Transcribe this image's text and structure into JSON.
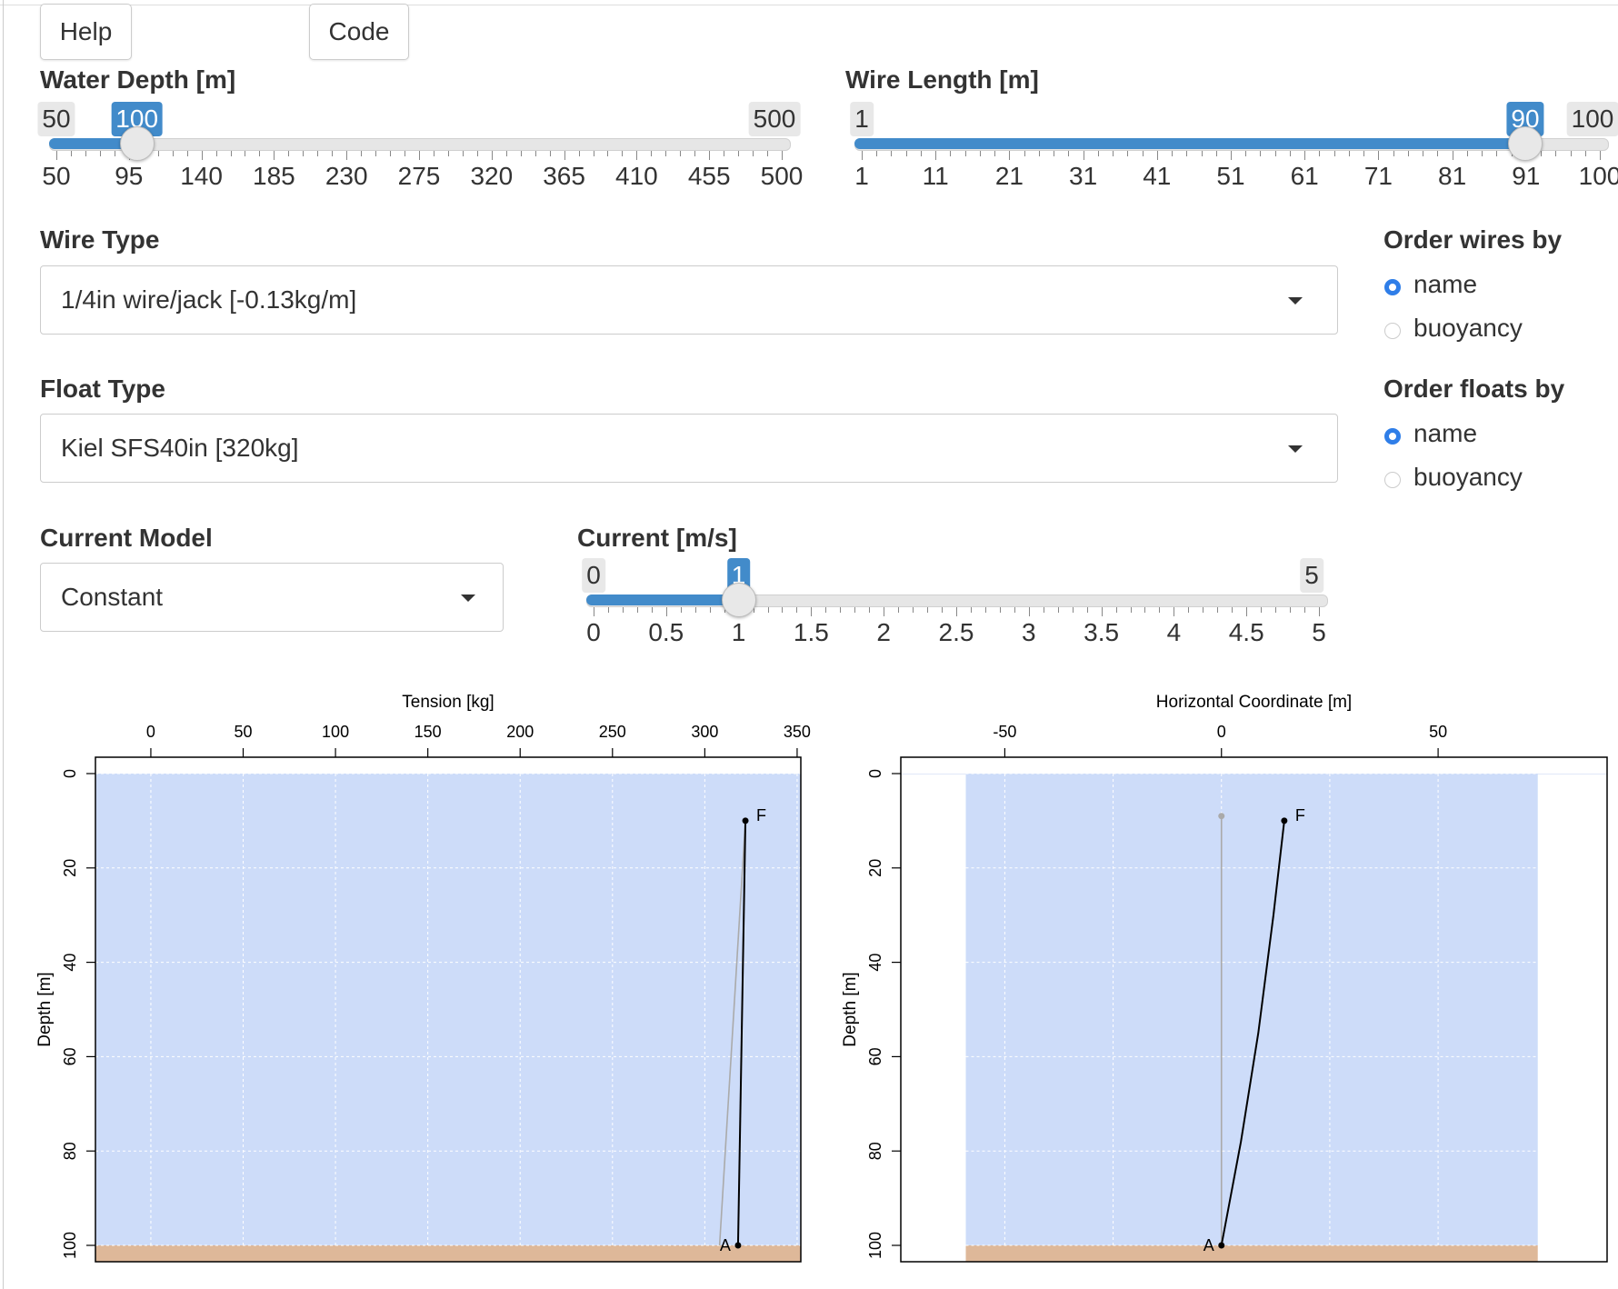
{
  "buttons": {
    "help": "Help",
    "code": "Code"
  },
  "water_depth": {
    "label": "Water Depth [m]",
    "min": 50,
    "max": 500,
    "value": 100,
    "min_label": "50",
    "max_label": "500",
    "value_label": "100",
    "ticks": [
      "50",
      "95",
      "140",
      "185",
      "230",
      "275",
      "320",
      "365",
      "410",
      "455",
      "500"
    ]
  },
  "wire_length": {
    "label": "Wire Length [m]",
    "min": 1,
    "max": 100,
    "value": 90,
    "min_label": "1",
    "max_label": "100",
    "value_label": "90",
    "ticks": [
      "1",
      "11",
      "21",
      "31",
      "41",
      "51",
      "61",
      "71",
      "81",
      "91",
      "100"
    ]
  },
  "wire_type": {
    "label": "Wire Type",
    "value": "1/4in wire/jack [-0.13kg/m]"
  },
  "float_type": {
    "label": "Float Type",
    "value": "Kiel SFS40in [320kg]"
  },
  "order_wires": {
    "label": "Order wires by",
    "options": [
      "name",
      "buoyancy"
    ],
    "selected": "name"
  },
  "order_floats": {
    "label": "Order floats by",
    "options": [
      "name",
      "buoyancy"
    ],
    "selected": "name"
  },
  "current_model": {
    "label": "Current Model",
    "value": "Constant"
  },
  "current": {
    "label": "Current [m/s]",
    "min": 0,
    "max": 5,
    "value": 1,
    "min_label": "0",
    "max_label": "5",
    "value_label": "1",
    "ticks": [
      "0",
      "0.5",
      "1",
      "1.5",
      "2",
      "2.5",
      "3",
      "3.5",
      "4",
      "4.5",
      "5"
    ]
  },
  "colors": {
    "water": "#cddcf9",
    "seabed": "#deb899",
    "accent": "#428bca"
  },
  "chart_data": [
    {
      "type": "line",
      "xlabel": "Tension [kg]",
      "ylabel": "Depth [m]",
      "xlim": [
        -30,
        352
      ],
      "ylim": [
        100,
        0
      ],
      "xticks": [
        "0",
        "50",
        "100",
        "150",
        "200",
        "250",
        "300",
        "350"
      ],
      "yticks": [
        "0",
        "20",
        "40",
        "60",
        "80",
        "100"
      ],
      "grid": true,
      "series": [
        {
          "color": "#aaaaaa",
          "x": [
            322,
            308
          ],
          "y": [
            10,
            100
          ]
        },
        {
          "color": "#000000",
          "x": [
            322,
            318
          ],
          "y": [
            10,
            100
          ]
        }
      ],
      "points": [
        {
          "label": "F",
          "x": 322,
          "y": 10
        },
        {
          "label": "A",
          "x": 318,
          "y": 100
        }
      ]
    },
    {
      "type": "line",
      "xlabel": "Horizontal Coordinate [m]",
      "ylabel": "Depth [m]",
      "xlim": [
        -74,
        89
      ],
      "ylim": [
        100,
        0
      ],
      "water_xlim": [
        -59,
        73
      ],
      "xticks": [
        "-50",
        "0",
        "50"
      ],
      "yticks": [
        "0",
        "20",
        "40",
        "60",
        "80",
        "100"
      ],
      "grid": true,
      "series": [
        {
          "color": "#aaaaaa",
          "x": [
            0,
            0
          ],
          "y": [
            9,
            100
          ]
        },
        {
          "color": "#000000",
          "x": [
            14.5,
            12,
            8.5,
            4.5,
            0
          ],
          "y": [
            10,
            30,
            55,
            78,
            100
          ]
        }
      ],
      "points": [
        {
          "label": "",
          "x": 0,
          "y": 9,
          "color": "#aaaaaa"
        },
        {
          "label": "F",
          "x": 14.5,
          "y": 10
        },
        {
          "label": "A",
          "x": 0,
          "y": 100
        }
      ]
    }
  ]
}
